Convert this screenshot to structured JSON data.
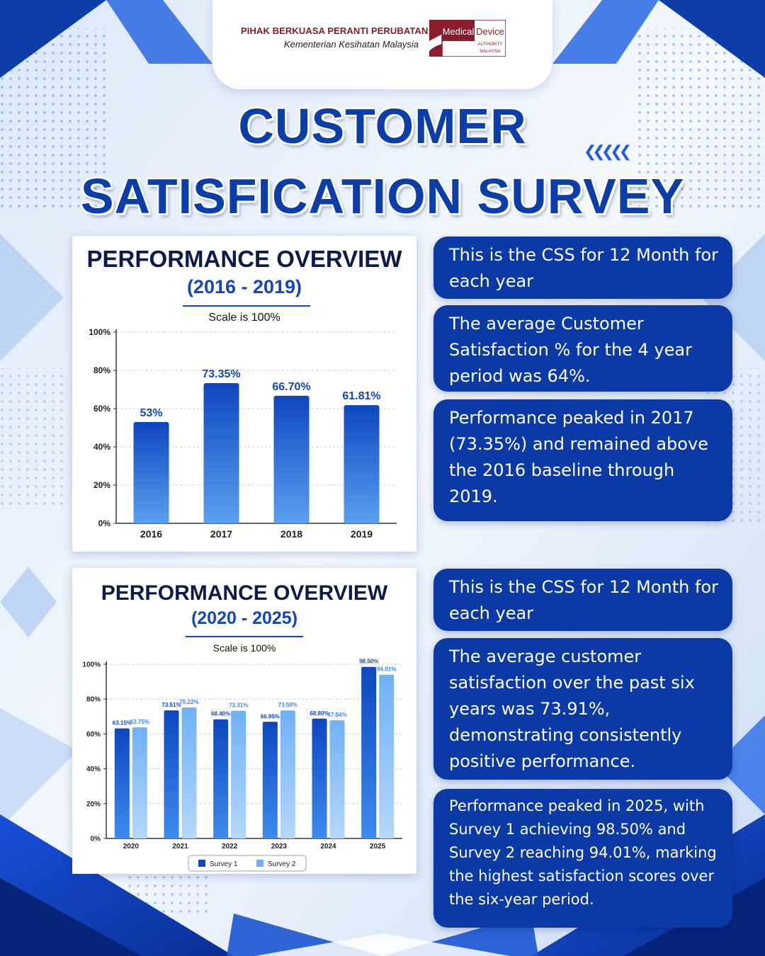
{
  "header": {
    "org_name": "PIHAK BERKUASA PERANTI PERUBATAN",
    "org_sub": "Kementerian Kesihatan Malaysia",
    "logo": {
      "line1a": "Medical",
      "line1b": "Device",
      "line2": "AUTHORITY",
      "line3": "MALAYSIA"
    }
  },
  "title": {
    "line1": "CUSTOMER",
    "line2": "SATISFICATION SURVEY"
  },
  "colors": {
    "primary": "#0b3aa6",
    "title": "#0b3ea8",
    "bar_dark": "#0d47c0",
    "bar_light": "#6fb1f5",
    "logo_red": "#8b1a2b"
  },
  "chart1": {
    "title": "PERFORMANCE OVERVIEW",
    "subtitle": "(2016 - 2019)",
    "scale_note": "Scale is 100%"
  },
  "chart2": {
    "title": "PERFORMANCE OVERVIEW",
    "subtitle": "(2020 - 2025)",
    "scale_note": "Scale is 100%"
  },
  "chart_data": [
    {
      "type": "bar",
      "title": "PERFORMANCE OVERVIEW",
      "subtitle": "(2016 - 2019)",
      "categories": [
        "2016",
        "2017",
        "2018",
        "2019"
      ],
      "values": [
        53,
        73.35,
        66.7,
        61.81
      ],
      "value_labels": [
        "53%",
        "73.35%",
        "66.70%",
        "61.81%"
      ],
      "ylim": [
        0,
        100
      ],
      "yticks": [
        "0%",
        "20%",
        "40%",
        "60%",
        "80%",
        "100%"
      ],
      "grid": true
    },
    {
      "type": "bar",
      "title": "PERFORMANCE OVERVIEW",
      "subtitle": "(2020 - 2025)",
      "categories": [
        "2020",
        "2021",
        "2022",
        "2023",
        "2024",
        "2025"
      ],
      "series": [
        {
          "name": "Survey 1",
          "values": [
            63.15,
            73.51,
            68.4,
            66.95,
            68.8,
            98.5
          ],
          "labels": [
            "63.15%",
            "73.51%",
            "68.40%",
            "66.95%",
            "68.80%",
            "98.50%"
          ]
        },
        {
          "name": "Survey 2",
          "values": [
            63.75,
            75.22,
            73.31,
            73.5,
            67.84,
            94.01
          ],
          "labels": [
            "63.75%",
            "75.22%",
            "73.31%",
            "73.50%",
            "67.84%",
            "94.01%"
          ]
        }
      ],
      "ylim": [
        0,
        100
      ],
      "yticks": [
        "0%",
        "20%",
        "40%",
        "60%",
        "80%",
        "100%"
      ],
      "legend": "bottom",
      "grid": true
    }
  ],
  "boxes": [
    "This is the CSS for 12 Month for each year",
    "The average Customer Satisfaction % for the 4 year period was 64%.",
    "Performance peaked in 2017 (73.35%) and remained above the 2016 baseline through 2019.",
    "This is the CSS for 12 Month for each year",
    "The average customer satisfaction over the past six years was 73.91%, demonstrating consistently positive performance.",
    "Performance peaked in 2025, with Survey 1 achieving 98.50% and Survey 2 reaching 94.01%, marking the highest satisfaction scores over the six-year period."
  ]
}
